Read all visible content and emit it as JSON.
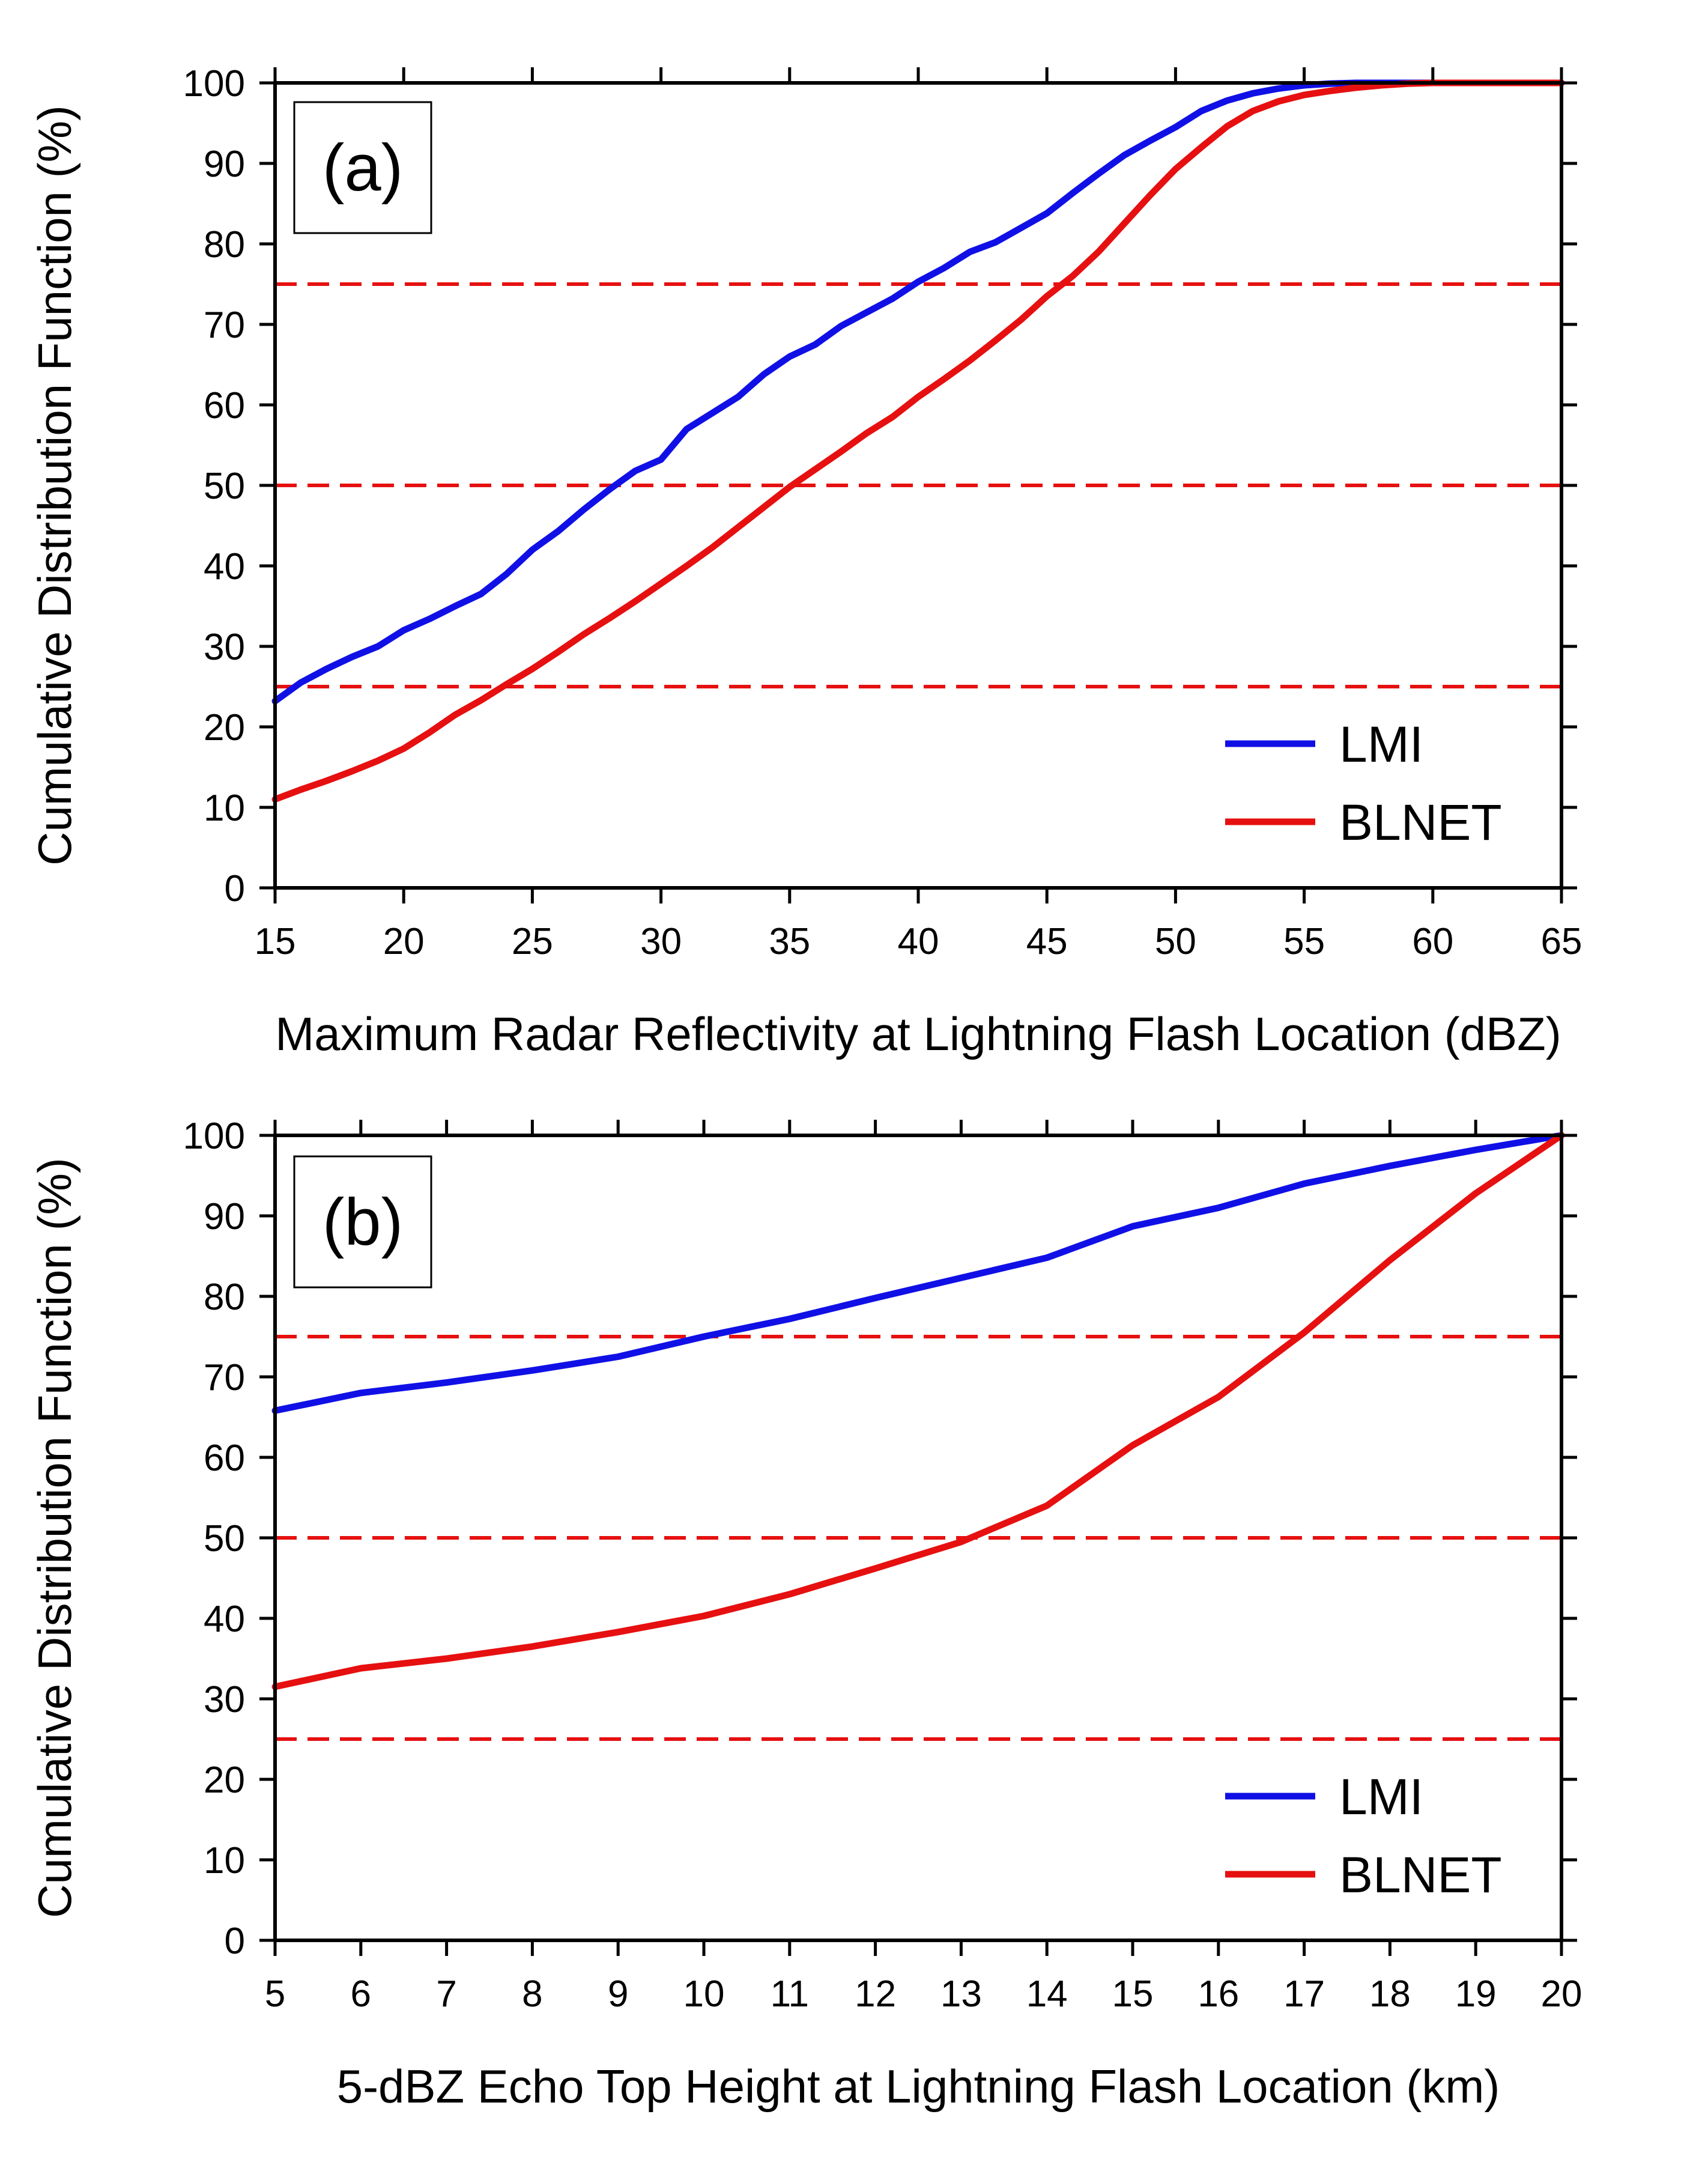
{
  "chart_data": [
    {
      "type": "line",
      "panel_label": "(a)",
      "xlabel": "Maximum Radar Reflectivity at Lightning Flash Location (dBZ)",
      "ylabel": "Cumulative Distribution Function (%)",
      "xlim": [
        15,
        65
      ],
      "ylim": [
        0,
        100
      ],
      "xticks": [
        15,
        20,
        25,
        30,
        35,
        40,
        45,
        50,
        55,
        60,
        65
      ],
      "yticks": [
        0,
        10,
        20,
        30,
        40,
        50,
        60,
        70,
        80,
        90,
        100
      ],
      "reference_lines": [
        25,
        50,
        75
      ],
      "legend_position": "bottom-right",
      "series": [
        {
          "name": "LMI",
          "color": "#1010e6",
          "x": [
            15,
            16,
            17,
            18,
            19,
            20,
            21,
            22,
            23,
            24,
            25,
            26,
            27,
            28,
            29,
            30,
            31,
            32,
            33,
            34,
            35,
            36,
            37,
            38,
            39,
            40,
            41,
            42,
            43,
            44,
            45,
            46,
            47,
            48,
            49,
            50,
            51,
            52,
            53,
            54,
            55,
            56,
            57,
            58,
            59,
            60,
            62,
            65
          ],
          "y": [
            23.2,
            25.5,
            27.2,
            28.7,
            30.0,
            32.0,
            33.4,
            35.0,
            36.5,
            39.0,
            42.0,
            44.3,
            47.0,
            49.5,
            51.8,
            53.2,
            57.0,
            59.0,
            61.0,
            63.8,
            66.0,
            67.5,
            69.8,
            71.5,
            73.2,
            75.3,
            77.0,
            79.0,
            80.2,
            82.0,
            83.8,
            86.3,
            88.7,
            91.0,
            92.8,
            94.5,
            96.5,
            97.8,
            98.7,
            99.3,
            99.7,
            99.9,
            100,
            100,
            100,
            100,
            100,
            100
          ]
        },
        {
          "name": "BLNET",
          "color": "#e61010",
          "x": [
            15,
            16,
            17,
            18,
            19,
            20,
            21,
            22,
            23,
            24,
            25,
            26,
            27,
            28,
            29,
            30,
            31,
            32,
            33,
            34,
            35,
            36,
            37,
            38,
            39,
            40,
            41,
            42,
            43,
            44,
            45,
            46,
            47,
            48,
            49,
            50,
            51,
            52,
            53,
            54,
            55,
            56,
            57,
            58,
            59,
            60,
            62,
            65
          ],
          "y": [
            11.0,
            12.2,
            13.3,
            14.5,
            15.8,
            17.3,
            19.3,
            21.5,
            23.3,
            25.3,
            27.2,
            29.3,
            31.5,
            33.5,
            35.6,
            37.8,
            40.0,
            42.3,
            44.8,
            47.3,
            49.8,
            52.0,
            54.2,
            56.5,
            58.5,
            61.0,
            63.2,
            65.5,
            68.0,
            70.6,
            73.5,
            76.0,
            79.0,
            82.5,
            86.0,
            89.3,
            92.0,
            94.6,
            96.5,
            97.7,
            98.5,
            99.0,
            99.4,
            99.7,
            99.9,
            100,
            100,
            100
          ]
        }
      ]
    },
    {
      "type": "line",
      "panel_label": "(b)",
      "xlabel": "5-dBZ Echo Top Height at Lightning Flash Location (km)",
      "ylabel": "Cumulative Distribution Function (%)",
      "xlim": [
        5,
        20
      ],
      "ylim": [
        0,
        100
      ],
      "xticks": [
        5,
        6,
        7,
        8,
        9,
        10,
        11,
        12,
        13,
        14,
        15,
        16,
        17,
        18,
        19,
        20
      ],
      "yticks": [
        0,
        10,
        20,
        30,
        40,
        50,
        60,
        70,
        80,
        90,
        100
      ],
      "reference_lines": [
        25,
        50,
        75
      ],
      "legend_position": "bottom-right",
      "series": [
        {
          "name": "LMI",
          "color": "#1010e6",
          "x": [
            5,
            6,
            7,
            8,
            9,
            10,
            11,
            12,
            13,
            14,
            15,
            16,
            17,
            18,
            19,
            20
          ],
          "y": [
            65.8,
            68.0,
            69.3,
            70.8,
            72.5,
            75.0,
            77.2,
            79.8,
            82.3,
            84.8,
            88.7,
            91.0,
            94.0,
            96.2,
            98.2,
            100
          ]
        },
        {
          "name": "BLNET",
          "color": "#e61010",
          "x": [
            5,
            6,
            7,
            8,
            9,
            10,
            11,
            12,
            13,
            14,
            15,
            16,
            17,
            18,
            19,
            20
          ],
          "y": [
            31.5,
            33.8,
            35.0,
            36.5,
            38.3,
            40.3,
            43.0,
            46.2,
            49.5,
            54.0,
            61.5,
            67.5,
            75.5,
            84.5,
            92.8,
            100
          ]
        }
      ]
    }
  ]
}
